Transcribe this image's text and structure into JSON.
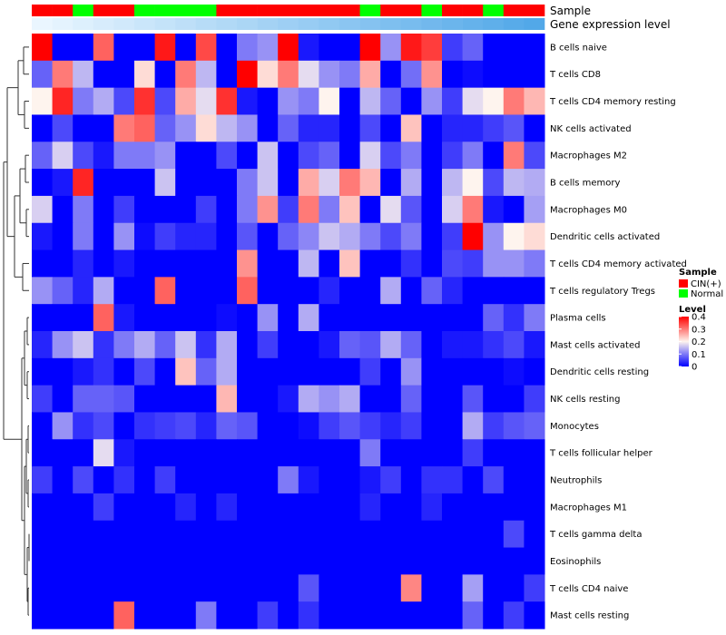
{
  "chart_data": {
    "type": "heatmap",
    "title": "",
    "annotation_rows": [
      "Sample",
      "Gene expression level"
    ],
    "sample_groups": [
      "CIN(+)",
      "CIN(+)",
      "Normal",
      "CIN(+)",
      "CIN(+)",
      "Normal",
      "Normal",
      "Normal",
      "Normal",
      "CIN(+)",
      "CIN(+)",
      "CIN(+)",
      "CIN(+)",
      "CIN(+)",
      "CIN(+)",
      "CIN(+)",
      "Normal",
      "CIN(+)",
      "CIN(+)",
      "Normal",
      "CIN(+)",
      "CIN(+)",
      "Normal",
      "CIN(+)",
      "CIN(+)"
    ],
    "expression_level": [
      0.05,
      0.07,
      0.09,
      0.11,
      0.13,
      0.15,
      0.17,
      0.19,
      0.21,
      0.23,
      0.25,
      0.27,
      0.29,
      0.31,
      0.33,
      0.35,
      0.37,
      0.39,
      0.41,
      0.43,
      0.45,
      0.47,
      0.49,
      0.51,
      0.53
    ],
    "rows": [
      "B cells naive",
      "T cells CD8",
      "T cells CD4 memory resting",
      "NK cells activated",
      "Macrophages M2",
      "B cells memory",
      "Macrophages M0",
      "Dendritic cells activated",
      "T cells CD4 memory activated",
      "T cells regulatory  Tregs",
      "Plasma cells",
      "Mast cells activated",
      "Dendritic cells resting",
      "NK cells resting",
      "Monocytes",
      "T cells follicular helper",
      "Neutrophils",
      "Macrophages M1",
      "T cells gamma delta",
      "Eosinophils",
      "T cells CD4 naive",
      "Mast cells resting"
    ],
    "values": [
      [
        0.4,
        0,
        0,
        0.32,
        0,
        0,
        0.38,
        0,
        0.34,
        0,
        0.1,
        0.12,
        0.4,
        0.02,
        0,
        0,
        0.4,
        0.12,
        0.38,
        0.35,
        0.05,
        0.08,
        0,
        0,
        0
      ],
      [
        0.08,
        0.3,
        0.15,
        0,
        0,
        0.22,
        0,
        0.3,
        0.15,
        0,
        0.4,
        0.22,
        0.3,
        0.18,
        0.12,
        0.1,
        0.26,
        0,
        0.09,
        0.28,
        0,
        0.01,
        0,
        0,
        0
      ],
      [
        0.2,
        0.37,
        0.1,
        0.14,
        0.06,
        0.36,
        0.06,
        0.26,
        0.18,
        0.36,
        0.02,
        0,
        0.12,
        0.1,
        0.2,
        0,
        0.15,
        0.08,
        0,
        0.12,
        0.05,
        0.18,
        0.2,
        0.3,
        0.25
      ],
      [
        0,
        0.06,
        0,
        0,
        0.3,
        0.32,
        0.08,
        0.12,
        0.22,
        0.15,
        0.12,
        0,
        0.08,
        0.03,
        0.03,
        0,
        0.06,
        0,
        0.24,
        0,
        0.03,
        0.03,
        0.05,
        0.07,
        0
      ],
      [
        0.08,
        0.17,
        0.06,
        0.02,
        0.1,
        0.1,
        0.12,
        0,
        0,
        0.06,
        0,
        0.16,
        0,
        0.06,
        0.08,
        0,
        0.17,
        0.06,
        0.1,
        0,
        0.05,
        0.1,
        0,
        0.3,
        0.06
      ],
      [
        0,
        0.02,
        0.37,
        0,
        0,
        0,
        0.16,
        0,
        0,
        0,
        0.1,
        0.16,
        0,
        0.26,
        0.17,
        0.3,
        0.25,
        0,
        0.14,
        0,
        0.15,
        0.2,
        0.06,
        0.15,
        0.14
      ],
      [
        0.17,
        0,
        0.1,
        0,
        0.05,
        0,
        0,
        0,
        0.05,
        0,
        0.1,
        0.28,
        0.05,
        0.3,
        0.1,
        0.24,
        0,
        0.18,
        0.07,
        0,
        0.17,
        0.3,
        0.02,
        0,
        0.13
      ],
      [
        0.02,
        0,
        0.1,
        0,
        0.12,
        0.01,
        0.05,
        0.03,
        0.03,
        0,
        0.07,
        0,
        0.08,
        0.11,
        0.16,
        0.14,
        0.1,
        0.06,
        0.1,
        0,
        0.05,
        0.4,
        0.12,
        0.2,
        0.22
      ],
      [
        0,
        0,
        0.03,
        0,
        0.02,
        0,
        0,
        0,
        0,
        0,
        0.28,
        0,
        0,
        0.15,
        0,
        0.24,
        0,
        0,
        0.04,
        0,
        0.06,
        0.05,
        0.12,
        0.12,
        0.1
      ],
      [
        0.12,
        0.08,
        0.03,
        0.14,
        0,
        0,
        0.32,
        0,
        0,
        0,
        0.32,
        0,
        0,
        0,
        0.03,
        0,
        0,
        0.14,
        0,
        0.08,
        0.03,
        0,
        0,
        0,
        0
      ],
      [
        0,
        0,
        0,
        0.32,
        0.02,
        0,
        0,
        0,
        0,
        0.01,
        0,
        0.12,
        0,
        0.14,
        0,
        0,
        0,
        0,
        0,
        0,
        0,
        0,
        0.08,
        0.04,
        0.1
      ],
      [
        0.03,
        0.12,
        0.16,
        0.04,
        0.1,
        0.14,
        0.08,
        0.16,
        0.04,
        0.14,
        0,
        0.05,
        0,
        0,
        0.02,
        0.08,
        0.07,
        0.14,
        0.08,
        0,
        0.02,
        0.02,
        0.04,
        0.06,
        0.02
      ],
      [
        0,
        0,
        0.02,
        0.04,
        0,
        0.06,
        0,
        0.24,
        0.08,
        0.14,
        0,
        0,
        0,
        0,
        0,
        0,
        0.05,
        0,
        0.12,
        0,
        0,
        0,
        0,
        0.01,
        0
      ],
      [
        0.05,
        0,
        0.08,
        0.08,
        0.07,
        0,
        0,
        0,
        0,
        0.25,
        0,
        0,
        0.02,
        0.14,
        0.12,
        0.14,
        0,
        0,
        0.08,
        0,
        0,
        0.07,
        0,
        0,
        0.05
      ],
      [
        0,
        0.12,
        0.04,
        0.06,
        0,
        0.04,
        0.05,
        0.06,
        0.03,
        0.08,
        0.07,
        0,
        0,
        0.01,
        0.05,
        0.07,
        0.05,
        0.03,
        0.05,
        0,
        0,
        0.14,
        0.05,
        0.07,
        0.08
      ],
      [
        0,
        0,
        0,
        0.18,
        0.02,
        0,
        0,
        0,
        0,
        0,
        0,
        0,
        0,
        0,
        0,
        0,
        0.1,
        0,
        0,
        0,
        0,
        0.05,
        0,
        0,
        0
      ],
      [
        0.05,
        0,
        0.06,
        0,
        0.04,
        0,
        0.05,
        0,
        0,
        0,
        0,
        0,
        0.1,
        0.02,
        0,
        0,
        0.02,
        0.05,
        0,
        0.04,
        0.04,
        0,
        0.06,
        0,
        0
      ],
      [
        0,
        0,
        0,
        0.05,
        0,
        0,
        0,
        0.03,
        0,
        0.03,
        0,
        0,
        0,
        0,
        0,
        0,
        0.03,
        0,
        0,
        0.03,
        0,
        0,
        0,
        0,
        0
      ],
      [
        0,
        0,
        0,
        0,
        0,
        0,
        0,
        0,
        0,
        0,
        0,
        0,
        0,
        0,
        0,
        0,
        0,
        0,
        0,
        0,
        0,
        0,
        0,
        0.06,
        0
      ],
      [
        0,
        0,
        0,
        0,
        0,
        0,
        0,
        0,
        0,
        0,
        0,
        0,
        0,
        0,
        0,
        0,
        0,
        0,
        0,
        0,
        0,
        0,
        0,
        0,
        0
      ],
      [
        0,
        0,
        0,
        0,
        0,
        0,
        0,
        0,
        0,
        0,
        0,
        0,
        0,
        0.07,
        0,
        0,
        0,
        0,
        0.29,
        0,
        0,
        0.13,
        0,
        0,
        0.05
      ],
      [
        0,
        0,
        0,
        0,
        0.32,
        0,
        0,
        0,
        0.1,
        0,
        0,
        0.05,
        0,
        0.04,
        0,
        0,
        0,
        0,
        0,
        0,
        0,
        0.08,
        0,
        0.05,
        0
      ]
    ],
    "scale": {
      "min": 0,
      "max": 0.4,
      "low_color": "#0000ff",
      "mid_color": "#fef4ee",
      "high_color": "#ff0000",
      "mid_value": 0.2
    },
    "legend": {
      "sample_title": "Sample",
      "sample_items": [
        {
          "label": "CIN(+)",
          "color": "#ff0000"
        },
        {
          "label": "Normal",
          "color": "#00ff00"
        }
      ],
      "level_title": "Level",
      "level_ticks": [
        "0.4",
        "0.3",
        "0.2",
        "0.1",
        "0"
      ]
    },
    "expression_colors": {
      "low": "#eaf6ff",
      "high": "#52a8e8"
    },
    "dendrogram": "rows-clustered"
  }
}
